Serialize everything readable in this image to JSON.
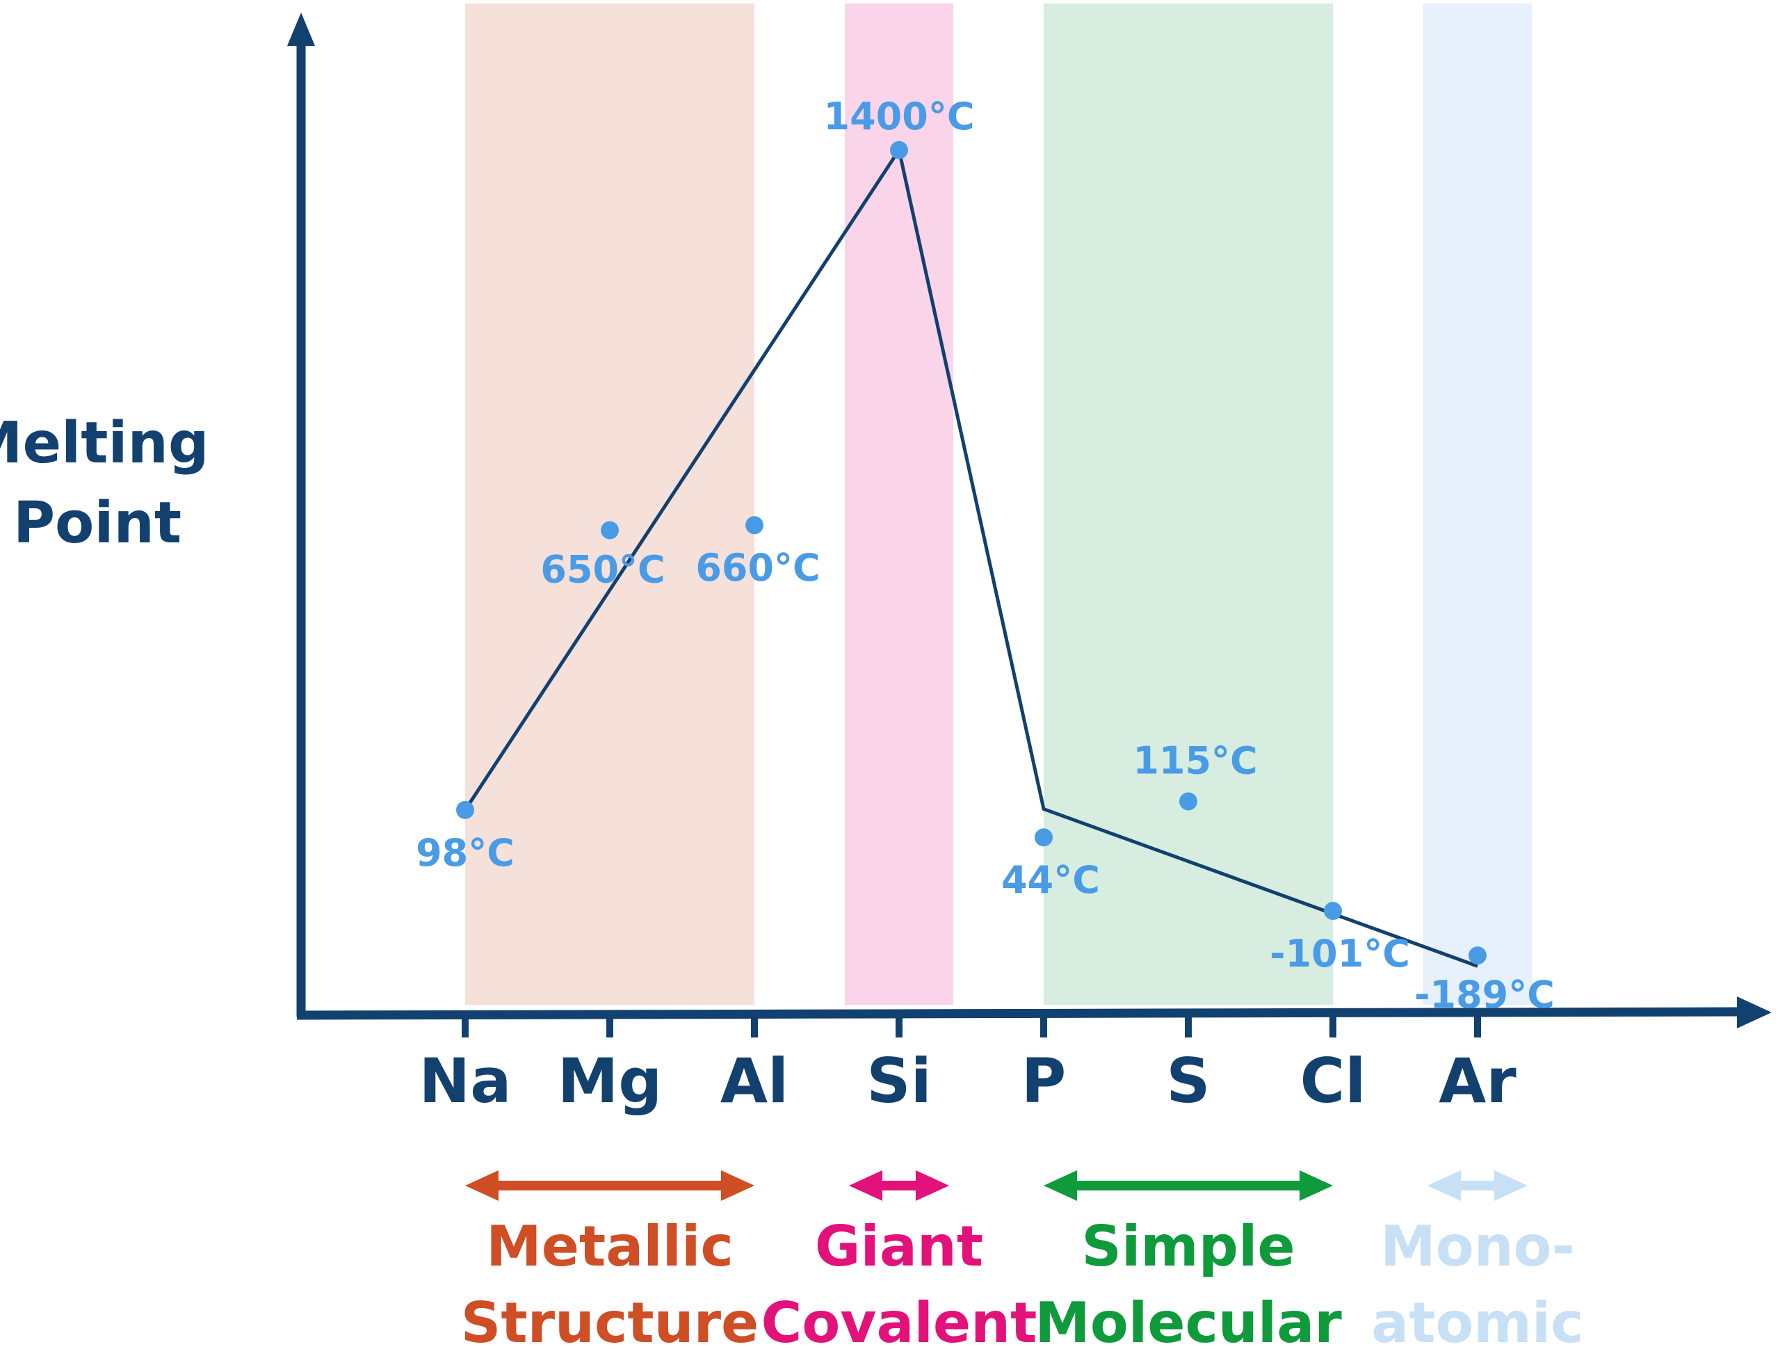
{
  "chart_data": {
    "type": "line",
    "title": "",
    "xlabel": "",
    "ylabel": "Melting Point",
    "ylabel_lines": [
      "Melting",
      "Point"
    ],
    "categories": [
      "Na",
      "Mg",
      "Al",
      "Si",
      "P",
      "S",
      "Cl",
      "Ar"
    ],
    "points": [
      {
        "element": "Na",
        "value": 98,
        "label": "98°C"
      },
      {
        "element": "Mg",
        "value": 650,
        "label": "650°C"
      },
      {
        "element": "Al",
        "value": 660,
        "label": "660°C"
      },
      {
        "element": "Si",
        "value": 1400,
        "label": "1400°C"
      },
      {
        "element": "P",
        "value": 44,
        "label": "44°C"
      },
      {
        "element": "S",
        "value": 115,
        "label": "115°C"
      },
      {
        "element": "Cl",
        "value": -101,
        "label": "-101°C"
      },
      {
        "element": "Ar",
        "value": -189,
        "label": "-189°C"
      }
    ],
    "trend_line": [
      {
        "element": "Na",
        "value": 98
      },
      {
        "element": "Si",
        "value": 1400
      },
      {
        "element": "P",
        "value": 100
      },
      {
        "element": "Ar",
        "value": -210
      }
    ],
    "ylim": [
      -300,
      1600
    ],
    "grid": false,
    "axis_color": "#12406f",
    "point_color": "#4a9be6",
    "regions": [
      {
        "name": "metallic",
        "lines": [
          "Metallic",
          "Structure"
        ],
        "from": "Na",
        "to": "Al",
        "band_color": "#f5e0da",
        "color": "#cf4e25"
      },
      {
        "name": "giant-covalent",
        "lines": [
          "Giant",
          "Covalent"
        ],
        "from": "Si",
        "to": "Si",
        "band_color": "#fad5ea",
        "color": "#e3117a"
      },
      {
        "name": "simple-molecular",
        "lines": [
          "Simple",
          "Molecular"
        ],
        "from": "P",
        "to": "Cl",
        "band_color": "#d6ede0",
        "color": "#0f9a3b"
      },
      {
        "name": "monoatomic",
        "lines": [
          "Mono-",
          "atomic"
        ],
        "from": "Ar",
        "to": "Ar",
        "band_color": "#e6f1fb",
        "color": "#c7e0f6"
      }
    ]
  }
}
